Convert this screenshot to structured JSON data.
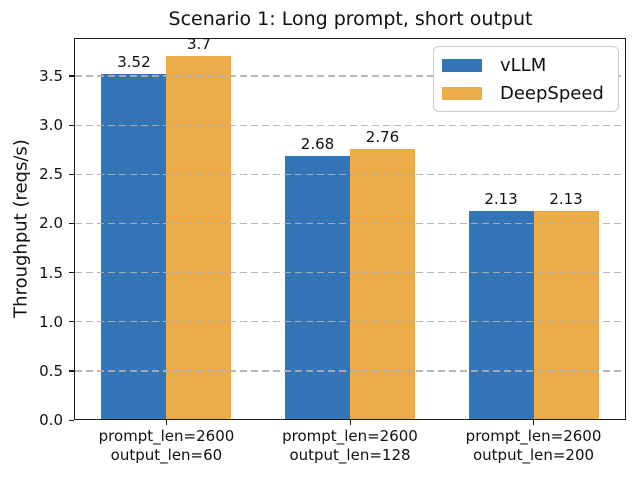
{
  "chart_data": {
    "type": "bar",
    "title": "Scenario 1: Long prompt, short output",
    "ylabel": "Throughput (reqs/s)",
    "xlabel": "",
    "categories": [
      [
        "prompt_len=2600",
        "output_len=60"
      ],
      [
        "prompt_len=2600",
        "output_len=128"
      ],
      [
        "prompt_len=2600",
        "output_len=200"
      ]
    ],
    "series": [
      {
        "name": "vLLM",
        "color": "#3375b7",
        "values": [
          3.52,
          2.68,
          2.13
        ],
        "labels": [
          "3.52",
          "2.68",
          "2.13"
        ]
      },
      {
        "name": "DeepSpeed",
        "color": "#ecab49",
        "values": [
          3.7,
          2.76,
          2.13
        ],
        "labels": [
          "3.7",
          "2.76",
          "2.13"
        ]
      }
    ],
    "yticks": [
      0.0,
      0.5,
      1.0,
      1.5,
      2.0,
      2.5,
      3.0,
      3.5
    ],
    "ylim": [
      0,
      3.885
    ],
    "grid": "horizontal-dashed",
    "grid_color": "#b0b0b0",
    "legend_position": "upper right",
    "text_color": "#111111"
  }
}
